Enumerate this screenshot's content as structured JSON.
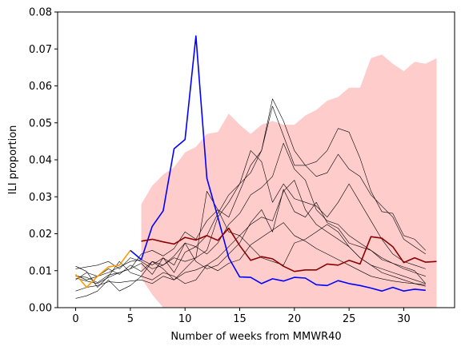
{
  "chart_data": {
    "type": "line",
    "title": "",
    "xlabel": "Number of weeks from MMWR40",
    "ylabel": "ILI proportion",
    "xlim": [
      -1.65,
      34.65
    ],
    "ylim": [
      0,
      0.08
    ],
    "xticks": [
      0,
      5,
      10,
      15,
      20,
      25,
      30
    ],
    "yticks": [
      0.0,
      0.01,
      0.02,
      0.03,
      0.04,
      0.05,
      0.06,
      0.07,
      0.08
    ],
    "ytick_labels": [
      "0.00",
      "0.01",
      "0.02",
      "0.03",
      "0.04",
      "0.05",
      "0.06",
      "0.07",
      "0.08"
    ],
    "grid": false,
    "legend": "none",
    "band": {
      "color": "#ffcccc",
      "x": [
        6,
        7,
        8,
        9,
        10,
        11,
        12,
        13,
        14,
        15,
        16,
        17,
        18,
        19,
        20,
        21,
        22,
        23,
        24,
        25,
        26,
        27,
        28,
        29,
        30,
        31,
        32,
        33
      ],
      "upper": [
        0.028,
        0.033,
        0.036,
        0.038,
        0.042,
        0.0435,
        0.047,
        0.0475,
        0.0525,
        0.0495,
        0.047,
        0.0495,
        0.0505,
        0.0495,
        0.0495,
        0.052,
        0.0535,
        0.056,
        0.057,
        0.0595,
        0.0595,
        0.0675,
        0.0685,
        0.066,
        0.064,
        0.0665,
        0.066,
        0.0675
      ],
      "lower": [
        0.008,
        0.0035,
        0.0,
        0.0,
        0.0,
        0.0,
        0.0,
        0.0,
        0.0,
        0.0,
        0.0,
        0.0,
        0.0,
        0.0,
        0.0,
        0.0,
        0.0,
        0.0,
        0.0,
        0.0,
        0.0,
        0.0,
        0.0,
        0.0,
        0.0,
        0.0,
        0.0,
        0.0
      ]
    },
    "background_series": [
      {
        "color": "#000000",
        "x": [
          0,
          1,
          2,
          3,
          4,
          5,
          6,
          7,
          8,
          9,
          10,
          11,
          12,
          13,
          14,
          15,
          16,
          17,
          18,
          19,
          20,
          21,
          22,
          23,
          24,
          25,
          26,
          27,
          28,
          29,
          30,
          31,
          32
        ],
        "values": [
          0.0045,
          0.0055,
          0.006,
          0.007,
          0.0068,
          0.0072,
          0.0075,
          0.0065,
          0.0085,
          0.0075,
          0.0095,
          0.0102,
          0.0115,
          0.01,
          0.012,
          0.013,
          0.017,
          0.019,
          0.021,
          0.023,
          0.0195,
          0.018,
          0.016,
          0.0145,
          0.013,
          0.0115,
          0.01,
          0.0085,
          0.0078,
          0.0072,
          0.0068,
          0.0065,
          0.0062
        ]
      },
      {
        "color": "#000000",
        "x": [
          0,
          1,
          2,
          3,
          4,
          5,
          6,
          7,
          8,
          9,
          10,
          11,
          12,
          13,
          14,
          15,
          16,
          17,
          18,
          19,
          20,
          21,
          22,
          23,
          24,
          25,
          26,
          27,
          28,
          29,
          30,
          31,
          32
        ],
        "values": [
          0.0085,
          0.0082,
          0.0068,
          0.0088,
          0.0095,
          0.0105,
          0.012,
          0.009,
          0.0135,
          0.0115,
          0.0175,
          0.0125,
          0.0105,
          0.0115,
          0.0145,
          0.0175,
          0.023,
          0.0265,
          0.0205,
          0.032,
          0.026,
          0.0245,
          0.0285,
          0.023,
          0.0215,
          0.0175,
          0.0165,
          0.0155,
          0.013,
          0.012,
          0.0105,
          0.0095,
          0.0085
        ]
      },
      {
        "color": "#000000",
        "x": [
          0,
          1,
          2,
          3,
          4,
          5,
          6,
          7,
          8,
          9,
          10,
          11,
          12,
          13,
          14,
          15,
          16,
          17,
          18,
          19,
          20,
          21,
          22,
          23,
          24,
          25,
          26,
          27,
          28,
          29,
          30,
          31,
          32
        ],
        "values": [
          0.0088,
          0.0075,
          0.0085,
          0.0095,
          0.011,
          0.0125,
          0.013,
          0.0115,
          0.0135,
          0.0095,
          0.015,
          0.0165,
          0.0145,
          0.0175,
          0.0225,
          0.0255,
          0.0305,
          0.0325,
          0.0355,
          0.0445,
          0.0375,
          0.0345,
          0.0265,
          0.0235,
          0.0225,
          0.0195,
          0.0175,
          0.0155,
          0.0135,
          0.012,
          0.011,
          0.01,
          0.0065
        ]
      },
      {
        "color": "#000000",
        "x": [
          0,
          1,
          2,
          3,
          4,
          5,
          6,
          7,
          8,
          9,
          10,
          11,
          12,
          13,
          14,
          15,
          16,
          17,
          18,
          19,
          20,
          21,
          22,
          23,
          24,
          25,
          26,
          27,
          28,
          29,
          30,
          31,
          32
        ],
        "values": [
          0.0025,
          0.0032,
          0.0045,
          0.0075,
          0.0045,
          0.006,
          0.0085,
          0.0125,
          0.0105,
          0.0075,
          0.0105,
          0.0135,
          0.0155,
          0.0245,
          0.0285,
          0.0335,
          0.0425,
          0.0395,
          0.0285,
          0.0335,
          0.0295,
          0.0285,
          0.0275,
          0.0245,
          0.0285,
          0.0335,
          0.0285,
          0.0235,
          0.0185,
          0.0145,
          0.0125,
          0.0115,
          0.0105
        ]
      },
      {
        "color": "#000000",
        "x": [
          0,
          1,
          2,
          3,
          4,
          5,
          6,
          7,
          8,
          9,
          10,
          11,
          12,
          13,
          14,
          15,
          16,
          17,
          18,
          19,
          20,
          21,
          22,
          23,
          24,
          25,
          26,
          27,
          28,
          29,
          30,
          31,
          32
        ],
        "values": [
          0.0105,
          0.011,
          0.0115,
          0.0125,
          0.0105,
          0.0135,
          0.0125,
          0.0105,
          0.0115,
          0.014,
          0.0175,
          0.0165,
          0.0195,
          0.0255,
          0.0305,
          0.0335,
          0.0365,
          0.0425,
          0.0565,
          0.0505,
          0.0425,
          0.0385,
          0.0355,
          0.0365,
          0.0415,
          0.0375,
          0.0355,
          0.0305,
          0.0275,
          0.0245,
          0.0185,
          0.0165,
          0.0145
        ]
      },
      {
        "color": "#000000",
        "x": [
          0,
          1,
          2,
          3,
          4,
          5,
          6,
          7,
          8,
          9,
          10,
          11,
          12,
          13,
          14,
          15,
          16,
          17,
          18,
          19,
          20,
          21,
          22,
          23,
          24,
          25,
          26,
          27,
          28,
          29,
          30,
          31,
          32
        ],
        "values": [
          0.008,
          0.0072,
          0.0065,
          0.0082,
          0.0095,
          0.0105,
          0.0145,
          0.0155,
          0.014,
          0.016,
          0.0205,
          0.0185,
          0.0235,
          0.0265,
          0.0245,
          0.0315,
          0.0385,
          0.0425,
          0.0545,
          0.0465,
          0.0385,
          0.0385,
          0.0395,
          0.0425,
          0.0485,
          0.0475,
          0.0405,
          0.0315,
          0.026,
          0.0255,
          0.0195,
          0.0185,
          0.0155
        ]
      },
      {
        "color": "#000000",
        "x": [
          0,
          1,
          2,
          3,
          4,
          5,
          6,
          7,
          8,
          9,
          10,
          11,
          12,
          13,
          14,
          15,
          16,
          17,
          18,
          19,
          20,
          21,
          22,
          23,
          24,
          25,
          26,
          27,
          28,
          29,
          30,
          31,
          32
        ],
        "values": [
          0.0075,
          0.0095,
          0.0085,
          0.0105,
          0.009,
          0.0115,
          0.0098,
          0.0125,
          0.0115,
          0.0135,
          0.0125,
          0.0135,
          0.0315,
          0.0265,
          0.0205,
          0.0195,
          0.0165,
          0.0135,
          0.0125,
          0.0115,
          0.0175,
          0.0185,
          0.0205,
          0.0225,
          0.0205,
          0.0165,
          0.0135,
          0.0115,
          0.0105,
          0.0095,
          0.0085,
          0.0075,
          0.0065
        ]
      },
      {
        "color": "#000000",
        "x": [
          0,
          1,
          2,
          3,
          4,
          5,
          6,
          7,
          8,
          9,
          10,
          11,
          12,
          13,
          14,
          15,
          16,
          17,
          18,
          19,
          20,
          21,
          22,
          23,
          24,
          25,
          26,
          27,
          28,
          29,
          30,
          31,
          32
        ],
        "values": [
          0.0112,
          0.0098,
          0.0055,
          0.0085,
          0.0125,
          0.0095,
          0.0085,
          0.0075,
          0.0095,
          0.0085,
          0.0065,
          0.0075,
          0.0115,
          0.0135,
          0.0165,
          0.0195,
          0.0225,
          0.0245,
          0.0235,
          0.0315,
          0.0345,
          0.0265,
          0.0225,
          0.0205,
          0.0185,
          0.0165,
          0.0135,
          0.0115,
          0.0095,
          0.0085,
          0.0075,
          0.0065,
          0.0058
        ]
      }
    ],
    "series": [
      {
        "color": "#ff9900",
        "x": [
          0,
          1,
          2,
          3,
          4,
          5
        ],
        "values": [
          0.009,
          0.0055,
          0.0085,
          0.011,
          0.0115,
          0.0155
        ]
      },
      {
        "color": "#0000ff",
        "x": [
          5,
          6,
          7,
          8,
          9,
          10,
          11,
          12,
          13,
          14,
          15,
          16,
          17,
          18,
          19,
          20,
          21,
          22,
          23,
          24,
          25,
          26,
          27,
          28,
          29,
          30,
          31,
          32
        ],
        "values": [
          0.0155,
          0.013,
          0.022,
          0.0262,
          0.043,
          0.0455,
          0.0735,
          0.035,
          0.0245,
          0.0135,
          0.0083,
          0.0082,
          0.0065,
          0.0078,
          0.0072,
          0.0082,
          0.008,
          0.0062,
          0.006,
          0.0073,
          0.0065,
          0.006,
          0.0053,
          0.0045,
          0.0055,
          0.0045,
          0.005,
          0.0047
        ]
      },
      {
        "color": "#8b0000",
        "x": [
          6,
          7,
          8,
          9,
          10,
          11,
          12,
          13,
          14,
          15,
          16,
          17,
          18,
          19,
          20,
          21,
          22,
          23,
          24,
          25,
          26,
          27,
          28,
          29,
          30,
          31,
          32,
          33
        ],
        "values": [
          0.018,
          0.0185,
          0.0178,
          0.0172,
          0.019,
          0.0183,
          0.0195,
          0.0182,
          0.0215,
          0.0168,
          0.0128,
          0.0138,
          0.0132,
          0.0112,
          0.0098,
          0.0102,
          0.0102,
          0.0118,
          0.0115,
          0.0128,
          0.0118,
          0.0192,
          0.0188,
          0.0165,
          0.0122,
          0.0135,
          0.0123,
          0.0125
        ]
      }
    ]
  }
}
